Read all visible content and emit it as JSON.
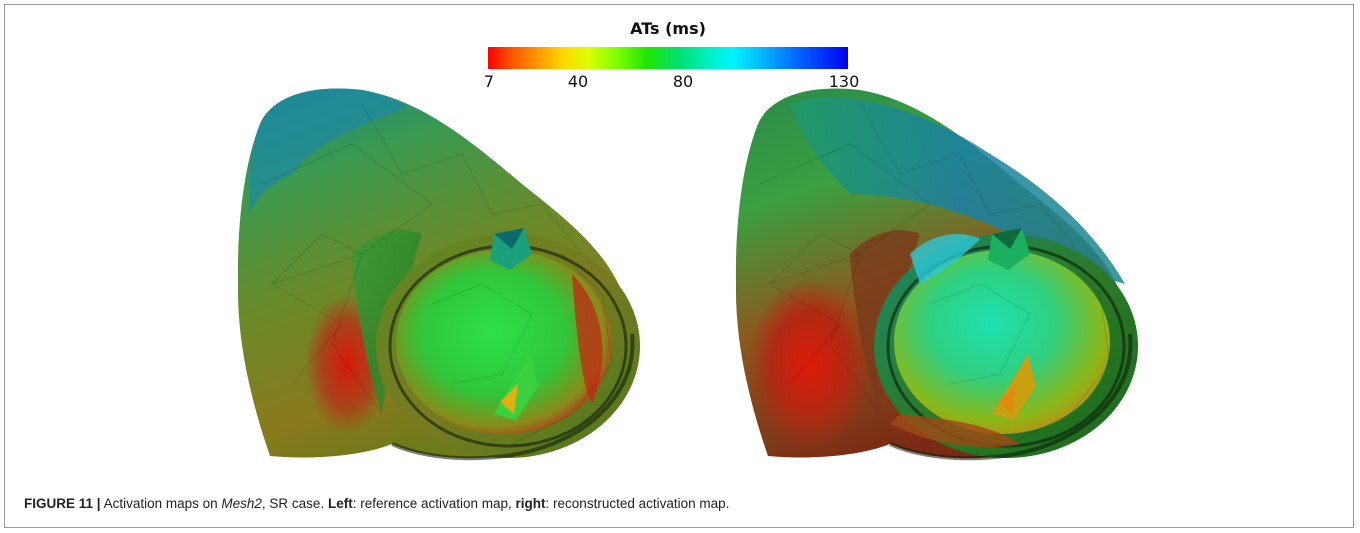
{
  "colorbar": {
    "title": "ATs (ms)",
    "ticks": [
      "7",
      "40",
      "80",
      "130"
    ]
  },
  "panels": [
    {
      "id": "left",
      "description_visible": false
    },
    {
      "id": "right",
      "description_visible": false
    }
  ],
  "caption": {
    "figure_label": "FIGURE 11 |",
    "text_1": " Activation maps on ",
    "mesh_name": "Mesh2",
    "text_2": ", SR case. ",
    "left_label": "Left",
    "text_3": ": reference activation map, ",
    "right_label": "right",
    "text_4": ": reconstructed activation map."
  },
  "colors": {
    "red": "#ff0000",
    "yellow": "#ffd800",
    "green": "#1ee600",
    "cyan": "#00f4ff",
    "blue": "#0000ee"
  }
}
